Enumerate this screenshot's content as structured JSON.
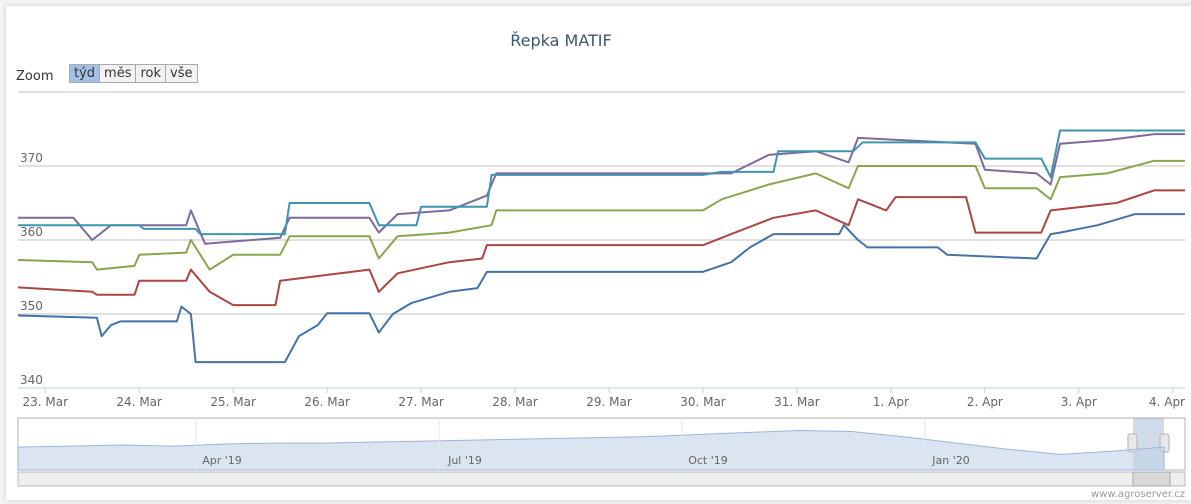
{
  "chart_data": {
    "type": "line",
    "title": "Řepka MATIF",
    "zoom_label": "Zoom",
    "zoom_buttons": [
      "týd",
      "měs",
      "rok",
      "vše"
    ],
    "credit": "www.agroserver.cz",
    "xlim": [
      -0.29,
      12.13
    ],
    "xticks": [
      {
        "value": 0,
        "label": "23. Mar"
      },
      {
        "value": 1,
        "label": "24. Mar"
      },
      {
        "value": 2,
        "label": "25. Mar"
      },
      {
        "value": 3,
        "label": "26. Mar"
      },
      {
        "value": 4,
        "label": "27. Mar"
      },
      {
        "value": 5,
        "label": "28. Mar"
      },
      {
        "value": 6,
        "label": "29. Mar"
      },
      {
        "value": 7,
        "label": "30. Mar"
      },
      {
        "value": 8,
        "label": "31. Mar"
      },
      {
        "value": 9,
        "label": "1. Apr"
      },
      {
        "value": 10,
        "label": "2. Apr"
      },
      {
        "value": 11,
        "label": "3. Apr"
      },
      {
        "value": 12,
        "label": "4. Apr"
      }
    ],
    "ylim": [
      340,
      380
    ],
    "yticks": [
      340,
      350,
      360,
      370
    ],
    "grid": true,
    "series": [
      {
        "color": "#4572a7",
        "x": [
          -0.29,
          0.55,
          0.6,
          0.7,
          0.8,
          1.4,
          1.45,
          1.55,
          1.6,
          2.55,
          2.7,
          2.9,
          3.0,
          3.45,
          3.55,
          3.7,
          3.9,
          4.3,
          4.6,
          4.7,
          7.0,
          7.3,
          7.5,
          7.75,
          8.45,
          8.5,
          8.65,
          8.75,
          9.5,
          9.6,
          10.55,
          10.7,
          10.8,
          11.2,
          11.6,
          12.13
        ],
        "values": [
          349.8,
          349.5,
          347,
          348.5,
          349,
          349,
          351,
          350,
          343.5,
          343.5,
          347,
          348.5,
          350.1,
          350.1,
          347.5,
          350,
          351.5,
          353,
          353.5,
          355.7,
          355.7,
          357,
          359,
          360.8,
          360.8,
          362,
          360,
          359,
          359,
          358,
          357.5,
          360.8,
          361,
          362,
          363.5,
          363.5
        ]
      },
      {
        "color": "#aa4643",
        "x": [
          -0.29,
          0.5,
          0.55,
          0.95,
          1.0,
          1.5,
          1.55,
          1.75,
          2.0,
          2.45,
          2.5,
          3.45,
          3.55,
          3.75,
          4.3,
          4.65,
          4.7,
          7.0,
          7.3,
          7.75,
          8.2,
          8.55,
          8.65,
          8.95,
          9.05,
          9.8,
          9.9,
          10.6,
          10.7,
          11.4,
          11.8,
          12.13
        ],
        "values": [
          353.6,
          353,
          352.6,
          352.6,
          354.5,
          354.5,
          356,
          353,
          351.2,
          351.2,
          354.5,
          356,
          353,
          355.5,
          357,
          357.5,
          359.3,
          359.3,
          360.8,
          363,
          364,
          362,
          365.5,
          364,
          365.8,
          365.8,
          361,
          361,
          364,
          365,
          366.7,
          366.7
        ]
      },
      {
        "color": "#89a54e",
        "x": [
          -0.29,
          0.5,
          0.55,
          0.95,
          1.0,
          1.5,
          1.55,
          1.75,
          2.0,
          2.5,
          2.6,
          3.45,
          3.55,
          3.75,
          4.3,
          4.75,
          4.8,
          7.0,
          7.2,
          7.7,
          8.2,
          8.55,
          8.65,
          9.9,
          10.0,
          10.55,
          10.7,
          10.8,
          11.3,
          11.8,
          12.13
        ],
        "values": [
          357.3,
          357,
          356,
          356.5,
          358,
          358.3,
          360,
          356,
          358,
          358,
          360.5,
          360.5,
          357.5,
          360.5,
          361,
          362,
          364,
          364,
          365.5,
          367.5,
          369,
          367,
          370,
          370,
          367,
          367,
          365.5,
          368.5,
          369,
          370.7,
          370.7
        ]
      },
      {
        "color": "#80699b",
        "x": [
          -0.29,
          0.3,
          0.5,
          0.7,
          1.5,
          1.55,
          1.7,
          2.5,
          2.6,
          3.45,
          3.55,
          3.75,
          4.3,
          4.7,
          4.8,
          7.0,
          7.3,
          7.7,
          8.2,
          8.55,
          8.65,
          9.9,
          10.0,
          10.55,
          10.7,
          10.8,
          11.3,
          11.8,
          12.13
        ],
        "values": [
          363,
          363,
          360,
          362,
          362,
          364,
          359.5,
          360.3,
          363,
          363,
          361,
          363.5,
          364,
          366,
          369,
          369,
          369,
          371.5,
          372,
          370.5,
          373.8,
          373,
          369.5,
          369,
          367.5,
          373,
          373.5,
          374.3,
          374.3
        ]
      },
      {
        "color": "#3d96ae",
        "x": [
          -0.29,
          1.0,
          1.05,
          1.6,
          1.65,
          2.55,
          2.6,
          3.45,
          3.55,
          3.95,
          4.0,
          4.7,
          4.75,
          7.0,
          7.2,
          7.75,
          7.8,
          8.6,
          8.7,
          9.9,
          10.0,
          10.6,
          10.7,
          10.8,
          12.13
        ],
        "values": [
          362,
          362,
          361.5,
          361.5,
          360.8,
          360.8,
          365,
          365,
          362,
          362,
          364.5,
          364.5,
          368.8,
          368.8,
          369.2,
          369.2,
          372,
          372,
          373.2,
          373.2,
          371,
          371,
          368.5,
          374.8,
          374.8
        ]
      }
    ],
    "navigator": {
      "labels": [
        "Apr '19",
        "Jul '19",
        "Oct '19",
        "Jan '20"
      ],
      "color": "#c3d3e8",
      "ylim": [
        330,
        380
      ],
      "values": [
        352,
        353,
        354,
        353,
        355,
        356,
        356,
        357,
        358,
        359,
        360,
        361,
        362,
        364,
        366,
        368,
        367,
        362,
        356,
        350,
        345,
        348,
        352
      ]
    }
  }
}
